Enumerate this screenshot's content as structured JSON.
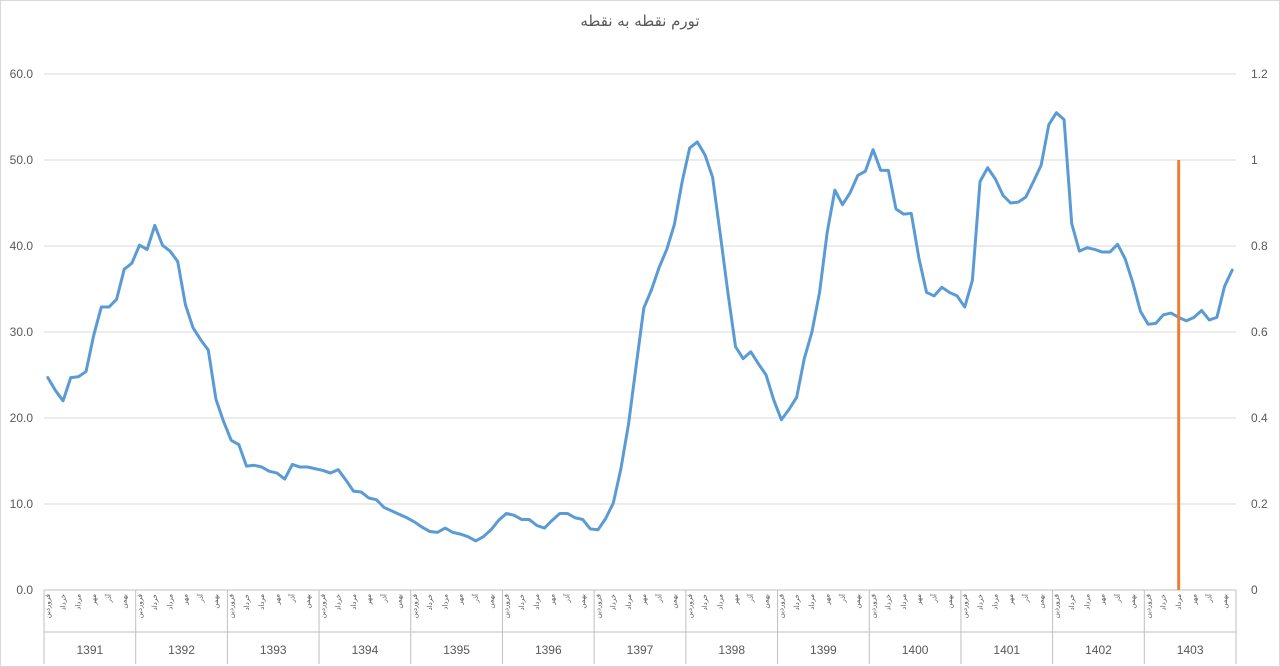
{
  "chart_data": {
    "type": "line",
    "title": "تورم نقطه به نقطه",
    "y_left": {
      "ticks": [
        "0.0",
        "10.0",
        "20.0",
        "30.0",
        "40.0",
        "50.0",
        "60.0"
      ],
      "ylim": [
        0,
        60
      ]
    },
    "y_right": {
      "ticks": [
        "0",
        "0.2",
        "0.4",
        "0.6",
        "0.8",
        "1",
        "1.2"
      ],
      "ylim": [
        0,
        1.2
      ]
    },
    "grid": true,
    "legend": "none",
    "years": [
      "1391",
      "1392",
      "1393",
      "1394",
      "1395",
      "1396",
      "1397",
      "1398",
      "1399",
      "1400",
      "1401",
      "1402",
      "1403"
    ],
    "month_labels": [
      "فروردین",
      "خرداد",
      "مرداد",
      "مهر",
      "آذر",
      "بهمن"
    ],
    "series": [
      {
        "color": "#5B9BD5",
        "axis": "left",
        "values": [
          24.7,
          23.2,
          22.0,
          24.7,
          24.8,
          25.4,
          29.6,
          32.9,
          32.9,
          33.8,
          37.3,
          38.0,
          40.1,
          39.6,
          42.4,
          40.1,
          39.4,
          38.2,
          33.2,
          30.5,
          29.1,
          27.9,
          22.2,
          19.6,
          17.4,
          16.9,
          14.4,
          14.5,
          14.3,
          13.8,
          13.6,
          12.9,
          14.6,
          14.3,
          14.3,
          14.1,
          13.9,
          13.6,
          14.0,
          12.8,
          11.5,
          11.4,
          10.7,
          10.5,
          9.6,
          9.2,
          8.8,
          8.4,
          7.9,
          7.3,
          6.8,
          6.7,
          7.2,
          6.7,
          6.5,
          6.2,
          5.7,
          6.2,
          7.0,
          8.1,
          8.9,
          8.7,
          8.2,
          8.2,
          7.5,
          7.2,
          8.1,
          8.9,
          8.9,
          8.4,
          8.2,
          7.1,
          7.0,
          8.3,
          10.1,
          14.1,
          19.3,
          26.1,
          32.8,
          34.9,
          37.5,
          39.6,
          42.5,
          47.4,
          51.4,
          52.1,
          50.6,
          48.0,
          41.4,
          34.6,
          28.3,
          26.9,
          27.7,
          26.3,
          25.0,
          22.1,
          19.8,
          21.0,
          22.4,
          26.9,
          30.0,
          34.6,
          41.6,
          46.5,
          44.8,
          46.2,
          48.2,
          48.7,
          51.2,
          48.8,
          48.8,
          44.3,
          43.7,
          43.8,
          38.6,
          34.6,
          34.2,
          35.2,
          34.6,
          34.2,
          32.9,
          36.0,
          47.5,
          49.1,
          47.8,
          45.9,
          45.0,
          45.1,
          45.7,
          47.5,
          49.4,
          54.1,
          55.5,
          54.7,
          42.6,
          39.4,
          39.8,
          39.6,
          39.3,
          39.3,
          40.2,
          38.5,
          35.7,
          32.4,
          30.9,
          31.0,
          32.0,
          32.2,
          31.7,
          31.3,
          31.7,
          32.5,
          31.4,
          31.7,
          35.3,
          37.2
        ]
      },
      {
        "color": "#ED7D31",
        "axis": "right",
        "marker_x": 148,
        "y_range": [
          0,
          1
        ]
      }
    ]
  }
}
